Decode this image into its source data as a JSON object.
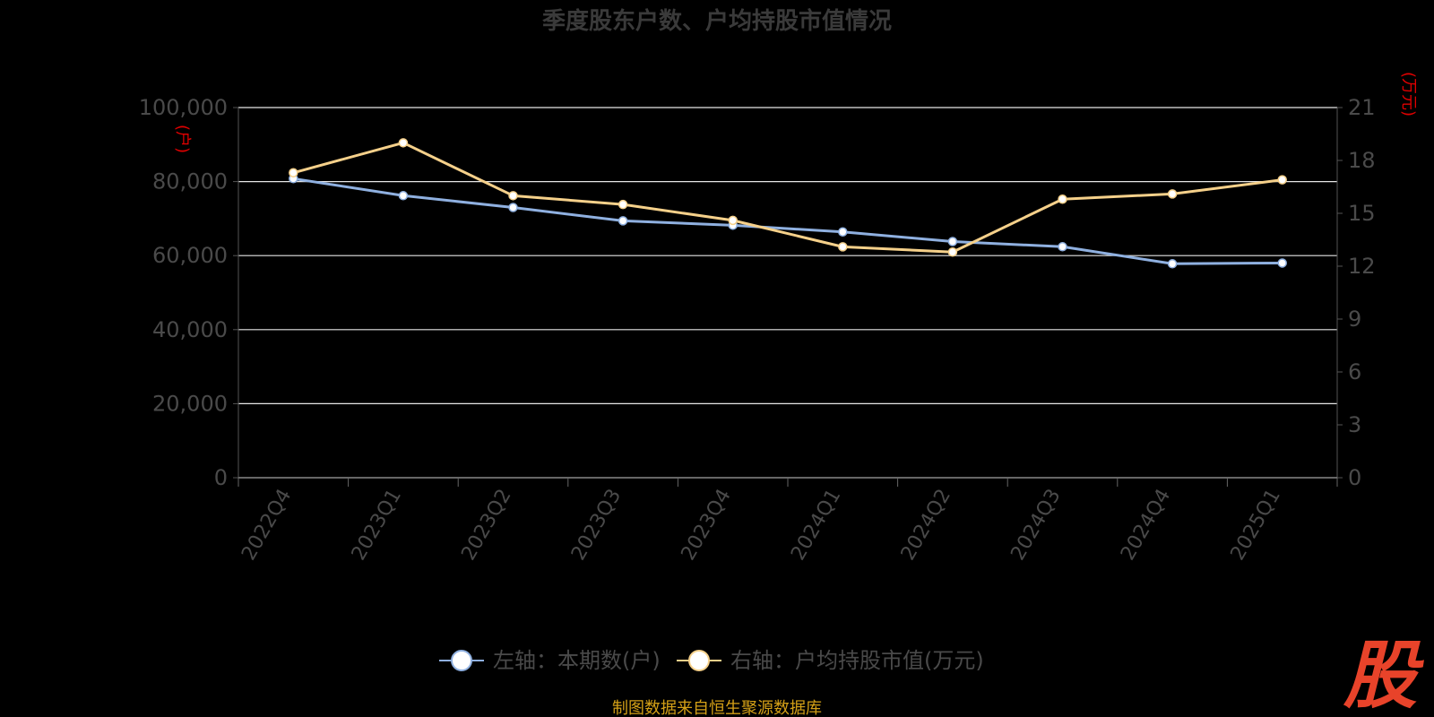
{
  "chart_data": {
    "type": "line",
    "title": "季度股东户数、户均持股市值情况",
    "categories": [
      "2022Q4",
      "2023Q1",
      "2023Q2",
      "2023Q3",
      "2023Q4",
      "2024Q1",
      "2024Q2",
      "2024Q3",
      "2024Q4",
      "2025Q1"
    ],
    "left_axis": {
      "unit_label": "(户)",
      "ylim": [
        0,
        100000
      ],
      "ticks": [
        "0",
        "20,000",
        "40,000",
        "60,000",
        "80,000",
        "100,000"
      ],
      "tick_values": [
        0,
        20000,
        40000,
        60000,
        80000,
        100000
      ]
    },
    "right_axis": {
      "unit_label": "(万元)",
      "ylim": [
        0,
        21
      ],
      "ticks": [
        "0",
        "3",
        "6",
        "9",
        "12",
        "15",
        "18",
        "21"
      ],
      "tick_values": [
        0,
        3,
        6,
        9,
        12,
        15,
        18,
        21
      ]
    },
    "grid": true,
    "legend_position": "bottom",
    "series": [
      {
        "name": "左轴：本期数(户)",
        "axis": "left",
        "color": "#8fb0e0",
        "values": [
          80800,
          76200,
          73000,
          69400,
          68200,
          66400,
          63800,
          62400,
          57800,
          58000
        ]
      },
      {
        "name": "右轴：户均持股市值(万元)",
        "axis": "right",
        "color": "#f5d08a",
        "values": [
          17.3,
          19.0,
          16.0,
          15.5,
          14.6,
          13.1,
          12.8,
          15.8,
          16.1,
          16.9
        ]
      }
    ]
  },
  "footer": {
    "source": "制图数据来自恒生聚源数据库",
    "brand": "股"
  }
}
